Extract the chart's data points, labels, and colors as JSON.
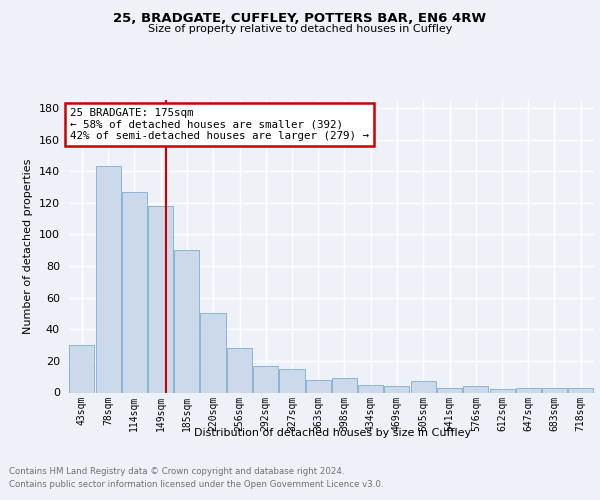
{
  "title1": "25, BRADGATE, CUFFLEY, POTTERS BAR, EN6 4RW",
  "title2": "Size of property relative to detached houses in Cuffley",
  "xlabel": "Distribution of detached houses by size in Cuffley",
  "ylabel": "Number of detached properties",
  "bar_color": "#ccd9ea",
  "bar_edge_color": "#7bafd4",
  "property_line_x": 175,
  "property_line_color": "#cc0000",
  "annotation_text": "25 BRADGATE: 175sqm\n← 58% of detached houses are smaller (392)\n42% of semi-detached houses are larger (279) →",
  "annotation_box_edgecolor": "#cc0000",
  "footnote1": "Contains HM Land Registry data © Crown copyright and database right 2024.",
  "footnote2": "Contains public sector information licensed under the Open Government Licence v3.0.",
  "bin_edges": [
    43,
    78,
    114,
    149,
    185,
    220,
    256,
    292,
    327,
    363,
    398,
    434,
    469,
    505,
    541,
    576,
    612,
    647,
    683,
    718,
    754
  ],
  "counts": [
    30,
    143,
    127,
    118,
    90,
    50,
    28,
    17,
    15,
    8,
    9,
    5,
    4,
    7,
    3,
    4,
    2,
    3,
    3,
    3
  ],
  "background_color": "#eef2f8",
  "grid_color": "#ffffff",
  "yticks": [
    0,
    20,
    40,
    60,
    80,
    100,
    120,
    140,
    160,
    180
  ],
  "ylim": [
    0,
    185
  ]
}
